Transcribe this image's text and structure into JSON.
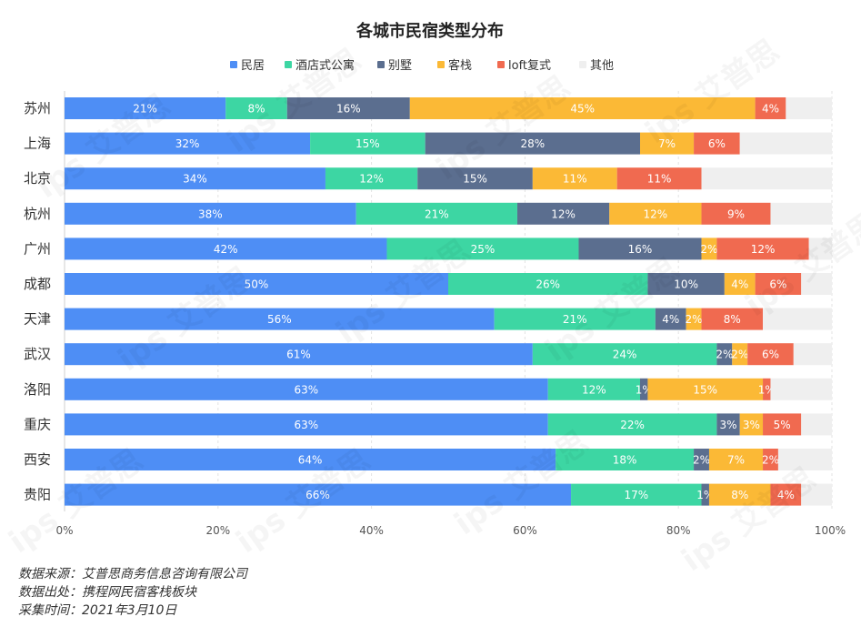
{
  "chart_data": {
    "type": "bar",
    "orientation": "horizontal-stacked-100",
    "title": "各城市民宿类型分布",
    "legend_position": "top",
    "categories": [
      "苏州",
      "上海",
      "北京",
      "杭州",
      "广州",
      "成都",
      "天津",
      "武汉",
      "洛阳",
      "重庆",
      "西安",
      "贵阳"
    ],
    "series": [
      {
        "name": "民居",
        "color": "#4e8ef5",
        "values": [
          21,
          32,
          34,
          38,
          42,
          50,
          56,
          61,
          63,
          63,
          64,
          66
        ]
      },
      {
        "name": "酒店式公寓",
        "color": "#3dd6a3",
        "values": [
          8,
          15,
          12,
          21,
          25,
          26,
          21,
          24,
          12,
          22,
          18,
          17
        ]
      },
      {
        "name": "别墅",
        "color": "#5b6e8f",
        "values": [
          16,
          28,
          15,
          12,
          16,
          10,
          4,
          2,
          1,
          3,
          2,
          1
        ]
      },
      {
        "name": "客栈",
        "color": "#fbb936",
        "values": [
          45,
          7,
          11,
          12,
          2,
          4,
          2,
          2,
          15,
          3,
          7,
          8
        ]
      },
      {
        "name": "loft复式",
        "color": "#f06a50",
        "values": [
          4,
          6,
          11,
          9,
          12,
          6,
          8,
          6,
          1,
          5,
          2,
          4
        ]
      },
      {
        "name": "其他",
        "color": "#efefef",
        "values": [
          6,
          12,
          19,
          8,
          3,
          4,
          9,
          5,
          8,
          4,
          7,
          4
        ]
      }
    ],
    "xlim": [
      0,
      100
    ],
    "x_ticks": [
      "0%",
      "20%",
      "40%",
      "60%",
      "80%",
      "100%"
    ],
    "grid": true
  },
  "watermark": "ips 艾普思",
  "footer": {
    "source": "数据来源：艾普思商务信息咨询有限公司",
    "origin": "数据出处：携程网民宿客栈板块",
    "time": "采集时间：2021年3月10日"
  }
}
